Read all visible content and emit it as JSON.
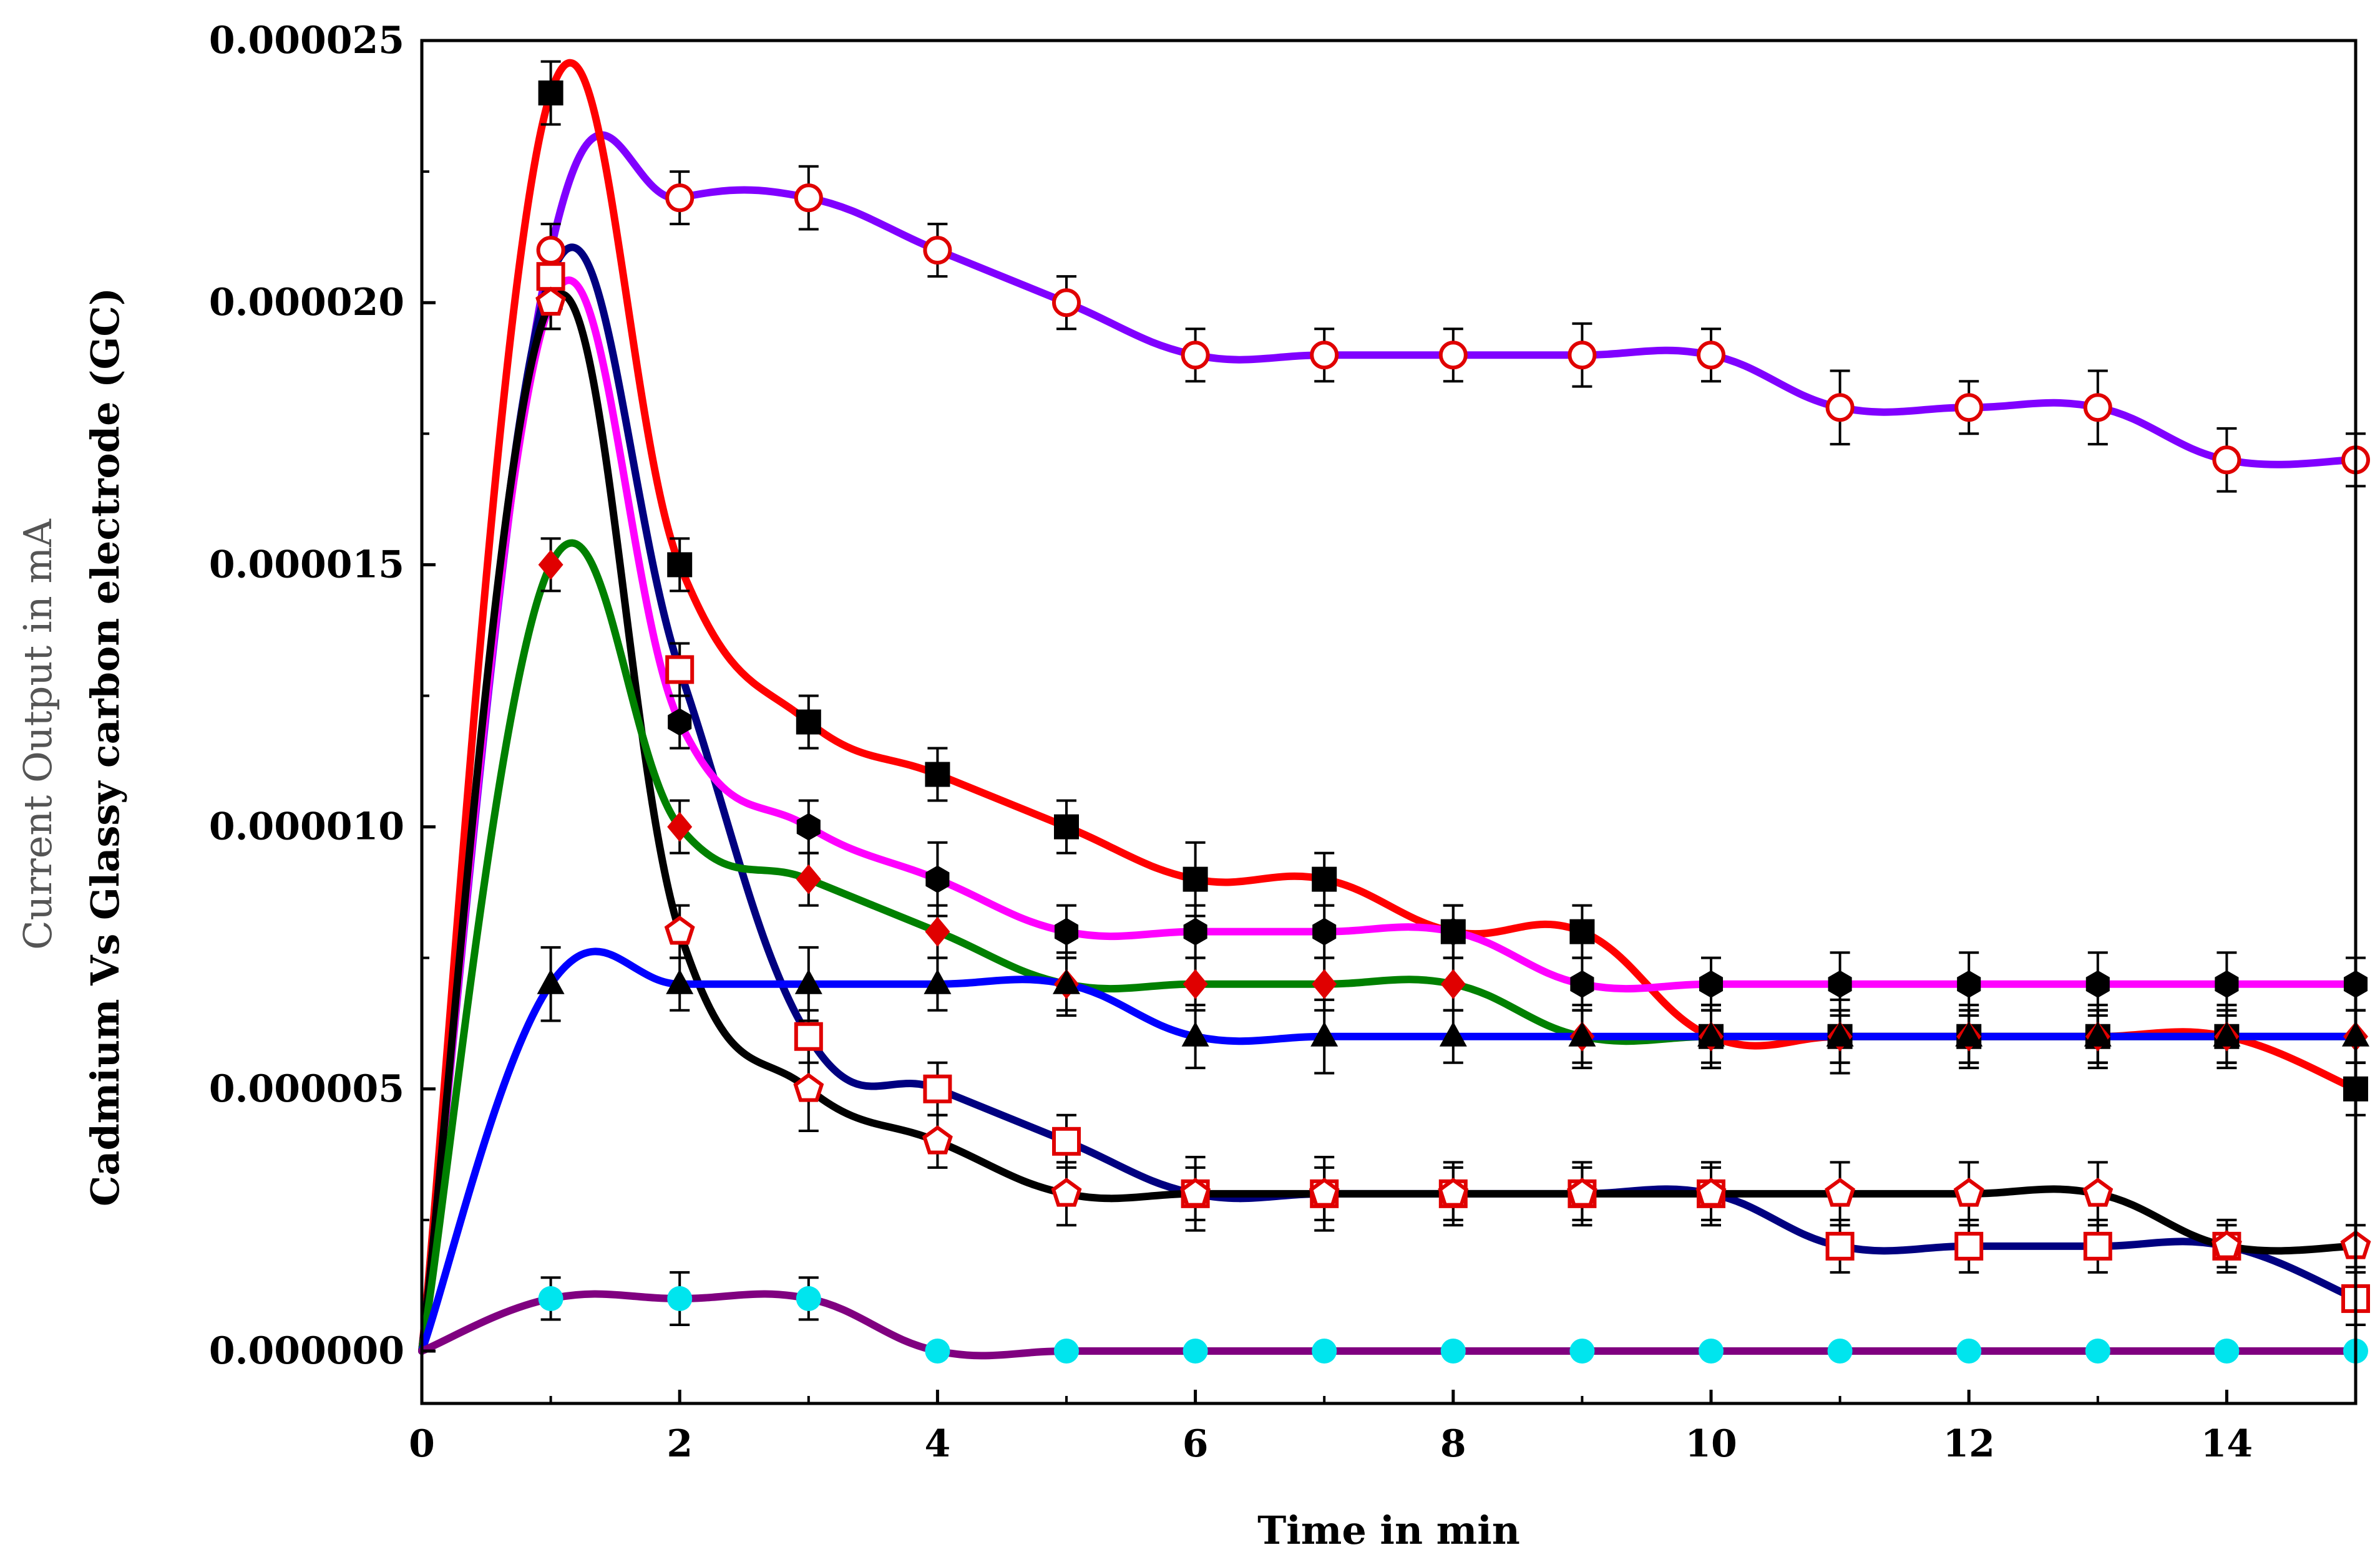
{
  "chart_data": {
    "type": "line",
    "title": "",
    "xlabel": "Time in min",
    "ylabel_line1": "Current Output in mA",
    "ylabel_line2": "Cadmium Vs Glassy carbon electrode (GC)",
    "xlim": [
      0,
      15
    ],
    "ylim": [
      -1e-06,
      2.5e-05
    ],
    "x_ticks": [
      0,
      2,
      4,
      6,
      8,
      10,
      12,
      14
    ],
    "x_tick_labels": [
      "0",
      "2",
      "4",
      "6",
      "8",
      "10",
      "12",
      "14"
    ],
    "y_ticks": [
      0,
      5e-06,
      1e-05,
      1.5e-05,
      2e-05,
      2.5e-05
    ],
    "y_tick_labels": [
      "0.000000",
      "0.000005",
      "0.000010",
      "0.000015",
      "0.000020",
      "0.000025"
    ],
    "grid": false,
    "legend": "none",
    "x": [
      0,
      1,
      2,
      3,
      4,
      5,
      6,
      7,
      8,
      9,
      10,
      11,
      12,
      13,
      14,
      15
    ],
    "series": [
      {
        "name": "series-purple-open-circle",
        "color": "#8000ff",
        "marker": "open-circle",
        "marker_color": "#e00000",
        "marker_fill": "#ffffff",
        "values": [
          0,
          2.1e-05,
          2.2e-05,
          2.2e-05,
          2.1e-05,
          2e-05,
          1.9e-05,
          1.9e-05,
          1.9e-05,
          1.9e-05,
          1.9e-05,
          1.8e-05,
          1.8e-05,
          1.8e-05,
          1.7e-05,
          1.7e-05
        ],
        "errors": [
          0,
          5e-07,
          5e-07,
          6e-07,
          5e-07,
          5e-07,
          5e-07,
          5e-07,
          5e-07,
          6e-07,
          5e-07,
          7e-07,
          5e-07,
          7e-07,
          6e-07,
          5e-07
        ]
      },
      {
        "name": "series-red-filled-square",
        "color": "#ff0000",
        "marker": "filled-square",
        "marker_color": "#000000",
        "marker_fill": "#000000",
        "values": [
          0,
          2.4e-05,
          1.5e-05,
          1.2e-05,
          1.1e-05,
          1e-05,
          9e-06,
          9e-06,
          8e-06,
          8e-06,
          6e-06,
          6e-06,
          6e-06,
          6e-06,
          6e-06,
          5e-06
        ],
        "errors": [
          0,
          6e-07,
          5e-07,
          5e-07,
          5e-07,
          5e-07,
          7e-07,
          5e-07,
          5e-07,
          5e-07,
          5e-07,
          5e-07,
          5e-07,
          5e-07,
          5e-07,
          5e-07
        ]
      },
      {
        "name": "series-navy-open-square",
        "color": "#000080",
        "marker": "open-square",
        "marker_color": "#e00000",
        "marker_fill": "#ffffff",
        "values": [
          0,
          2.05e-05,
          1.3e-05,
          6e-06,
          5e-06,
          4e-06,
          3e-06,
          3e-06,
          3e-06,
          3e-06,
          3e-06,
          2e-06,
          2e-06,
          2e-06,
          2e-06,
          1e-06
        ],
        "errors": [
          0,
          5e-07,
          5e-07,
          5e-07,
          5e-07,
          5e-07,
          5e-07,
          5e-07,
          5e-07,
          5e-07,
          5e-07,
          5e-07,
          5e-07,
          5e-07,
          5e-07,
          5e-07
        ]
      },
      {
        "name": "series-magenta-filled-hexagon",
        "color": "#ff00ff",
        "marker": "filled-hexagon",
        "marker_color": "#000000",
        "marker_fill": "#000000",
        "values": [
          0,
          2e-05,
          1.2e-05,
          1e-05,
          9e-06,
          8e-06,
          8e-06,
          8e-06,
          8e-06,
          7e-06,
          7e-06,
          7e-06,
          7e-06,
          7e-06,
          7e-06,
          7e-06
        ],
        "errors": [
          0,
          5e-07,
          5e-07,
          5e-07,
          7e-07,
          5e-07,
          5e-07,
          5e-07,
          5e-07,
          5e-07,
          5e-07,
          6e-07,
          6e-07,
          6e-07,
          6e-07,
          5e-07
        ]
      },
      {
        "name": "series-black-open-pentagon",
        "color": "#000000",
        "marker": "open-pentagon",
        "marker_color": "#e00000",
        "marker_fill": "#ffffff",
        "values": [
          0,
          2e-05,
          8e-06,
          5e-06,
          4e-06,
          3e-06,
          3e-06,
          3e-06,
          3e-06,
          3e-06,
          3e-06,
          3e-06,
          3e-06,
          3e-06,
          2e-06,
          2e-06
        ],
        "errors": [
          0,
          5e-07,
          5e-07,
          8e-07,
          5e-07,
          6e-07,
          7e-07,
          7e-07,
          6e-07,
          6e-07,
          6e-07,
          6e-07,
          6e-07,
          6e-07,
          4e-07,
          4e-07
        ]
      },
      {
        "name": "series-green-red-diamond",
        "color": "#008000",
        "marker": "filled-diamond",
        "marker_color": "#e00000",
        "marker_fill": "#e00000",
        "values": [
          0,
          1.5e-05,
          1e-05,
          9e-06,
          8e-06,
          7e-06,
          7e-06,
          7e-06,
          7e-06,
          6e-06,
          6e-06,
          6e-06,
          6e-06,
          6e-06,
          6e-06,
          6e-06
        ],
        "errors": [
          0,
          5e-07,
          5e-07,
          5e-07,
          5e-07,
          5e-07,
          5e-07,
          5e-07,
          5e-07,
          6e-07,
          6e-07,
          7e-07,
          6e-07,
          6e-07,
          6e-07,
          5e-07
        ]
      },
      {
        "name": "series-blue-filled-triangle",
        "color": "#0000ff",
        "marker": "filled-triangle",
        "marker_color": "#000000",
        "marker_fill": "#000000",
        "values": [
          0,
          7e-06,
          7e-06,
          7e-06,
          7e-06,
          7e-06,
          6e-06,
          6e-06,
          6e-06,
          6e-06,
          6e-06,
          6e-06,
          6e-06,
          6e-06,
          6e-06,
          6e-06
        ],
        "errors": [
          0,
          7e-07,
          5e-07,
          7e-07,
          5e-07,
          6e-07,
          6e-07,
          7e-07,
          5e-07,
          5e-07,
          6e-07,
          5e-07,
          5e-07,
          5e-07,
          5e-07,
          5e-07
        ]
      },
      {
        "name": "series-purple-cyan-circle",
        "color": "#800080",
        "marker": "filled-circle",
        "marker_color": "#00e5ee",
        "marker_fill": "#00e5ee",
        "values": [
          0,
          1e-06,
          1e-06,
          1e-06,
          0,
          0,
          0,
          0,
          0,
          0,
          0,
          0,
          0,
          0,
          0,
          0
        ],
        "errors": [
          0,
          4e-07,
          5e-07,
          4e-07,
          0,
          0,
          0,
          0,
          0,
          0,
          0,
          0,
          0,
          0,
          0,
          0
        ]
      }
    ]
  }
}
